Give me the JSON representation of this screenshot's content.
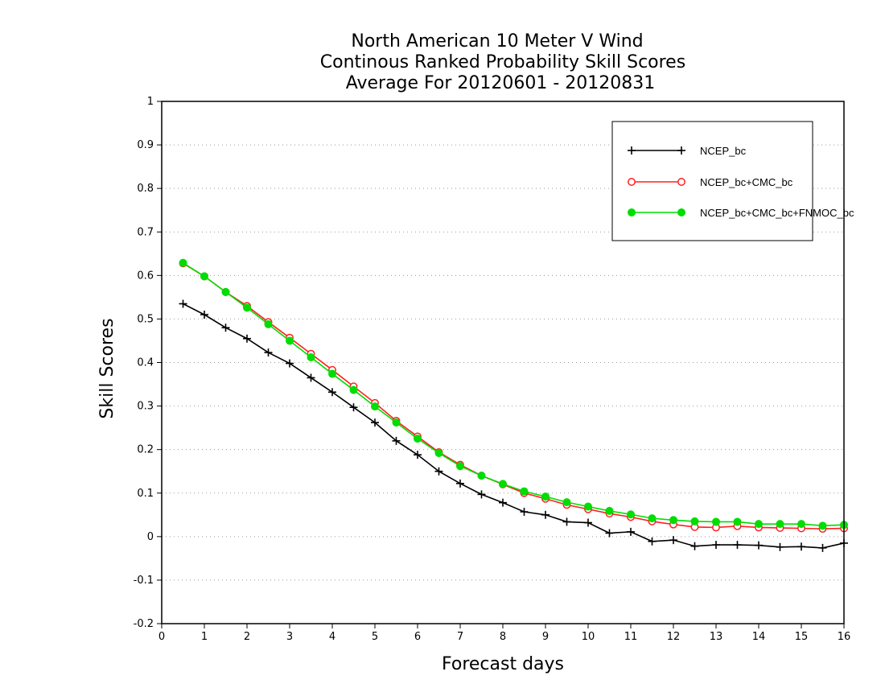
{
  "chart_data": {
    "type": "line",
    "title": [
      "North American 10 Meter V Wind",
      "Continous Ranked Probability Skill Scores",
      "Average For 20120601 - 20120831"
    ],
    "xlabel": "Forecast days",
    "ylabel": "Skill Scores",
    "xlim": [
      0,
      16
    ],
    "ylim": [
      -0.2,
      1
    ],
    "x_ticks": [
      "0",
      "1",
      "2",
      "3",
      "4",
      "5",
      "6",
      "7",
      "8",
      "9",
      "10",
      "11",
      "12",
      "13",
      "14",
      "15",
      "16"
    ],
    "y_ticks": [
      "-0.2",
      "-0.1",
      "0",
      "0.1",
      "0.2",
      "0.3",
      "0.4",
      "0.5",
      "0.6",
      "0.7",
      "0.8",
      "0.9",
      "1"
    ],
    "grid": "horizontal dotted",
    "legend_position": "top-right",
    "x": [
      0.5,
      1,
      1.5,
      2,
      2.5,
      3,
      3.5,
      4,
      4.5,
      5,
      5.5,
      6,
      6.5,
      7,
      7.5,
      8,
      8.5,
      9,
      9.5,
      10,
      10.5,
      11,
      11.5,
      12,
      12.5,
      13,
      13.5,
      14,
      14.5,
      15,
      15.5,
      16
    ],
    "series": [
      {
        "name": "NCEP_bc",
        "color": "#000000",
        "marker": "plus",
        "values": [
          0.535,
          0.51,
          0.48,
          0.455,
          0.423,
          0.398,
          0.365,
          0.332,
          0.297,
          0.262,
          0.22,
          0.188,
          0.15,
          0.122,
          0.097,
          0.078,
          0.057,
          0.05,
          0.034,
          0.032,
          0.008,
          0.011,
          -0.011,
          -0.008,
          -0.022,
          -0.019,
          -0.019,
          -0.02,
          -0.024,
          -0.023,
          -0.026,
          -0.015
        ]
      },
      {
        "name": "NCEP_bc+CMC_bc",
        "color": "#ff2020",
        "marker": "open-circle",
        "values": [
          0.628,
          0.598,
          0.562,
          0.53,
          0.493,
          0.457,
          0.42,
          0.383,
          0.345,
          0.307,
          0.266,
          0.23,
          0.194,
          0.165,
          0.14,
          0.12,
          0.1,
          0.087,
          0.073,
          0.063,
          0.053,
          0.045,
          0.035,
          0.028,
          0.022,
          0.021,
          0.024,
          0.021,
          0.02,
          0.019,
          0.018,
          0.019
        ]
      },
      {
        "name": "NCEP_bc+CMC_bc+FNMOC_bc",
        "color": "#00dd00",
        "marker": "filled-circle",
        "values": [
          0.629,
          0.598,
          0.562,
          0.526,
          0.488,
          0.45,
          0.412,
          0.374,
          0.337,
          0.299,
          0.262,
          0.225,
          0.192,
          0.162,
          0.14,
          0.121,
          0.104,
          0.092,
          0.079,
          0.069,
          0.059,
          0.051,
          0.042,
          0.038,
          0.035,
          0.034,
          0.034,
          0.029,
          0.029,
          0.029,
          0.025,
          0.027
        ]
      }
    ]
  }
}
